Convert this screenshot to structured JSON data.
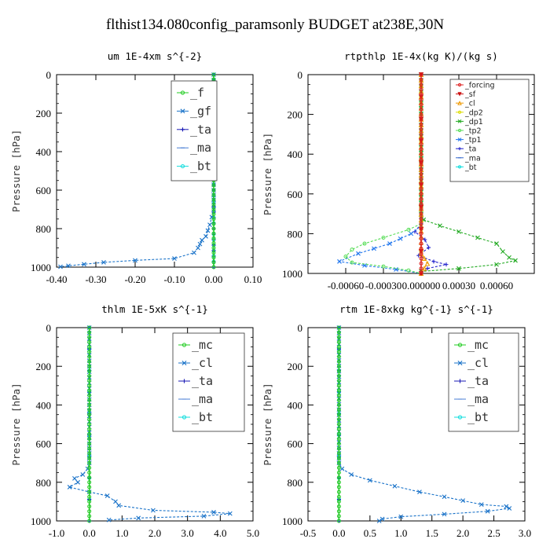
{
  "figure": {
    "title": "flthist134.080config_paramsonly  BUDGET at238E,30N"
  },
  "chart_data": [
    {
      "type": "line",
      "title": "um  1E-4xm s^{-2}",
      "ylabel": "Pressure [hPa]",
      "xlim": [
        -0.4,
        0.1
      ],
      "ylim": [
        1000,
        0
      ],
      "xticks": [
        -0.4,
        -0.3,
        -0.2,
        -0.1,
        0.0,
        0.1
      ],
      "xtick_labels": [
        "-0.40",
        "-0.30",
        "-0.20",
        "-0.10",
        "0.00",
        "0.10"
      ],
      "yticks": [
        0,
        200,
        400,
        600,
        800,
        1000
      ],
      "ytick_labels": [
        "0",
        "200",
        "400",
        "600",
        "800",
        "1000"
      ],
      "legend_position": "top-right",
      "legend_style": "large",
      "series": [
        {
          "name": "_f",
          "color": "#22cc22",
          "marker": "o",
          "points": [
            [
              0,
              0
            ],
            [
              0,
              100
            ],
            [
              0,
              200
            ],
            [
              0,
              300
            ],
            [
              0,
              400
            ],
            [
              0,
              500
            ],
            [
              0,
              600
            ],
            [
              0,
              700
            ],
            [
              0,
              800
            ],
            [
              0,
              900
            ],
            [
              0,
              1000
            ]
          ]
        },
        {
          "name": "_gf",
          "color": "#1a73c9",
          "marker": "x",
          "points": [
            [
              0.0,
              0
            ],
            [
              0.0,
              200
            ],
            [
              0.0,
              400
            ],
            [
              0.0,
              600
            ],
            [
              0.0,
              700
            ],
            [
              -0.005,
              740
            ],
            [
              -0.01,
              780
            ],
            [
              -0.015,
              810
            ],
            [
              -0.02,
              840
            ],
            [
              -0.03,
              860
            ],
            [
              -0.035,
              880
            ],
            [
              -0.04,
              900
            ],
            [
              -0.05,
              925
            ],
            [
              -0.1,
              955
            ],
            [
              -0.2,
              965
            ],
            [
              -0.28,
              975
            ],
            [
              -0.33,
              985
            ],
            [
              -0.37,
              993
            ],
            [
              -0.39,
              998
            ]
          ]
        },
        {
          "name": "_ta",
          "color": "#1a1ab5",
          "marker": "+",
          "points": [
            [
              0,
              0
            ],
            [
              0,
              200
            ],
            [
              0,
              400
            ],
            [
              0,
              600
            ],
            [
              0,
              800
            ],
            [
              0,
              1000
            ]
          ]
        },
        {
          "name": "_ma",
          "color": "#4a7fd4",
          "marker": "-",
          "points": [
            [
              0,
              0
            ],
            [
              0,
              200
            ],
            [
              0,
              400
            ],
            [
              0,
              600
            ],
            [
              0,
              800
            ],
            [
              0,
              1000
            ]
          ]
        },
        {
          "name": "_bt",
          "color": "#11dddd",
          "marker": "o",
          "points": [
            [
              0,
              0
            ],
            [
              0,
              200
            ],
            [
              0,
              400
            ],
            [
              0,
              600
            ],
            [
              0,
              800
            ],
            [
              0,
              1000
            ]
          ]
        }
      ]
    },
    {
      "type": "line",
      "title": "rtpthlp  1E-4x(kg K)/(kg s)",
      "ylabel": "Pressure [hPa]",
      "xlim": [
        -0.0009,
        0.0009
      ],
      "ylim": [
        1000,
        0
      ],
      "xticks": [
        -0.0006,
        -0.0003,
        0.0,
        0.0003,
        0.0006
      ],
      "xtick_labels": [
        "-0.00060",
        "-0.00030",
        "0.000000",
        "0.00030",
        "0.00060"
      ],
      "yticks": [
        0,
        200,
        400,
        600,
        800,
        1000
      ],
      "ytick_labels": [
        "0",
        "200",
        "400",
        "600",
        "800",
        "1000"
      ],
      "legend_position": "top-right",
      "legend_style": "small",
      "series": [
        {
          "name": "_forcing",
          "color": "#dd2222",
          "marker": "o",
          "points": [
            [
              0,
              0
            ],
            [
              0,
              100
            ],
            [
              0,
              200
            ],
            [
              0,
              300
            ],
            [
              0,
              400
            ],
            [
              0,
              500
            ],
            [
              0,
              600
            ],
            [
              0,
              700
            ],
            [
              0,
              800
            ],
            [
              0,
              900
            ],
            [
              0,
              1000
            ]
          ]
        },
        {
          "name": "_sf",
          "color": "#cc1111",
          "marker": "v",
          "points": [
            [
              0,
              0
            ],
            [
              0,
              1000
            ]
          ]
        },
        {
          "name": "_cl",
          "color": "#ee9900",
          "marker": "^",
          "points": [
            [
              0,
              0
            ],
            [
              0,
              900
            ],
            [
              5e-05,
              950
            ],
            [
              0,
              1000
            ]
          ]
        },
        {
          "name": "_dp2",
          "color": "#dddd00",
          "marker": "o",
          "points": [
            [
              0,
              0
            ],
            [
              0,
              1000
            ]
          ]
        },
        {
          "name": "_dp1",
          "color": "#22aa22",
          "marker": "x",
          "points": [
            [
              0,
              0
            ],
            [
              0,
              700
            ],
            [
              2e-05,
              730
            ],
            [
              0.00015,
              760
            ],
            [
              0.0003,
              790
            ],
            [
              0.00045,
              820
            ],
            [
              0.0006,
              850
            ],
            [
              0.00065,
              890
            ],
            [
              0.0007,
              920
            ],
            [
              0.00075,
              935
            ],
            [
              0.0006,
              955
            ],
            [
              0.0003,
              975
            ],
            [
              0.0,
              990
            ]
          ]
        },
        {
          "name": "_tp2",
          "color": "#55dd55",
          "marker": "o",
          "points": [
            [
              0,
              0
            ],
            [
              0,
              750
            ],
            [
              -0.0001,
              780
            ],
            [
              -0.0003,
              820
            ],
            [
              -0.00045,
              850
            ],
            [
              -0.00055,
              880
            ],
            [
              -0.0006,
              915
            ],
            [
              -0.00055,
              945
            ],
            [
              -0.0003,
              965
            ],
            [
              -0.0001,
              985
            ],
            [
              0,
              1000
            ]
          ]
        },
        {
          "name": "_tp1",
          "color": "#2277ee",
          "marker": "x",
          "points": [
            [
              0,
              0
            ],
            [
              0,
              760
            ],
            [
              -8e-05,
              800
            ],
            [
              -0.00025,
              850
            ],
            [
              -0.0005,
              900
            ],
            [
              -0.00065,
              940
            ],
            [
              -0.00045,
              960
            ],
            [
              -0.0002,
              980
            ],
            [
              0,
              1000
            ]
          ]
        },
        {
          "name": "_ta",
          "color": "#2222cc",
          "marker": "+",
          "points": [
            [
              0,
              0
            ],
            [
              0,
              750
            ],
            [
              -5e-05,
              790
            ],
            [
              3e-05,
              830
            ],
            [
              6e-05,
              870
            ],
            [
              -2e-05,
              910
            ],
            [
              0.0001,
              940
            ],
            [
              0.0002,
              955
            ],
            [
              5e-05,
              975
            ],
            [
              0,
              1000
            ]
          ]
        },
        {
          "name": "_ma",
          "color": "#3366cc",
          "marker": "-",
          "points": [
            [
              0,
              0
            ],
            [
              0,
              1000
            ]
          ]
        },
        {
          "name": "_bt",
          "color": "#11dddd",
          "marker": "o",
          "points": [
            [
              0,
              0
            ],
            [
              0,
              1000
            ]
          ]
        }
      ]
    },
    {
      "type": "line",
      "title": "thlm  1E-5xK s^{-1}",
      "ylabel": "Pressure [hPa]",
      "xlim": [
        -1.0,
        5.0
      ],
      "ylim": [
        1000,
        0
      ],
      "xticks": [
        -1,
        0,
        1,
        2,
        3,
        4,
        5
      ],
      "xtick_labels": [
        "-1.0",
        "0.0",
        "1.0",
        "2.0",
        "3.0",
        "4.0",
        "5.0"
      ],
      "yticks": [
        0,
        200,
        400,
        600,
        800,
        1000
      ],
      "ytick_labels": [
        "0",
        "200",
        "400",
        "600",
        "800",
        "1000"
      ],
      "legend_position": "top-right",
      "legend_style": "large",
      "series": [
        {
          "name": "_mc",
          "color": "#22cc22",
          "marker": "o",
          "points": [
            [
              0,
              0
            ],
            [
              0,
              100
            ],
            [
              0,
              200
            ],
            [
              0,
              300
            ],
            [
              0,
              400
            ],
            [
              0,
              500
            ],
            [
              0,
              600
            ],
            [
              0,
              700
            ],
            [
              0,
              800
            ],
            [
              0,
              900
            ],
            [
              0,
              1000
            ]
          ]
        },
        {
          "name": "_cl",
          "color": "#1a73c9",
          "marker": "x",
          "points": [
            [
              0,
              0
            ],
            [
              0,
              600
            ],
            [
              0,
              700
            ],
            [
              -0.05,
              730
            ],
            [
              -0.2,
              760
            ],
            [
              -0.45,
              780
            ],
            [
              -0.35,
              800
            ],
            [
              -0.6,
              825
            ],
            [
              0.0,
              850
            ],
            [
              0.55,
              870
            ],
            [
              0.8,
              900
            ],
            [
              0.9,
              920
            ],
            [
              1.95,
              945
            ],
            [
              3.8,
              955
            ],
            [
              4.3,
              962
            ],
            [
              3.5,
              975
            ],
            [
              1.5,
              985
            ],
            [
              0.6,
              995
            ]
          ]
        },
        {
          "name": "_ta",
          "color": "#1a1ab5",
          "marker": "+",
          "points": [
            [
              0,
              0
            ],
            [
              0,
              1000
            ]
          ]
        },
        {
          "name": "_ma",
          "color": "#4a7fd4",
          "marker": "-",
          "points": [
            [
              0,
              0
            ],
            [
              0,
              1000
            ]
          ]
        },
        {
          "name": "_bt",
          "color": "#11dddd",
          "marker": "o",
          "points": [
            [
              0,
              0
            ],
            [
              0,
              1000
            ]
          ]
        }
      ]
    },
    {
      "type": "line",
      "title": "rtm  1E-8xkg kg^{-1} s^{-1}",
      "ylabel": "Pressure [hPa]",
      "xlim": [
        -0.5,
        3.0
      ],
      "ylim": [
        1000,
        0
      ],
      "xticks": [
        -0.5,
        0.0,
        0.5,
        1.0,
        1.5,
        2.0,
        2.5,
        3.0
      ],
      "xtick_labels": [
        "-0.5",
        "0.0",
        "0.5",
        "1.0",
        "1.5",
        "2.0",
        "2.5",
        "3.0"
      ],
      "yticks": [
        0,
        200,
        400,
        600,
        800,
        1000
      ],
      "ytick_labels": [
        "0",
        "200",
        "400",
        "600",
        "800",
        "1000"
      ],
      "legend_position": "top-right",
      "legend_style": "large",
      "series": [
        {
          "name": "_mc",
          "color": "#22cc22",
          "marker": "o",
          "points": [
            [
              0,
              0
            ],
            [
              0,
              100
            ],
            [
              0,
              200
            ],
            [
              0,
              300
            ],
            [
              0,
              400
            ],
            [
              0,
              500
            ],
            [
              0,
              600
            ],
            [
              0,
              700
            ],
            [
              0,
              800
            ],
            [
              0,
              900
            ],
            [
              0,
              1000
            ]
          ]
        },
        {
          "name": "_cl",
          "color": "#1a73c9",
          "marker": "x",
          "points": [
            [
              0,
              0
            ],
            [
              0,
              650
            ],
            [
              0,
              700
            ],
            [
              0.05,
              730
            ],
            [
              0.2,
              760
            ],
            [
              0.5,
              790
            ],
            [
              0.9,
              820
            ],
            [
              1.3,
              850
            ],
            [
              1.7,
              875
            ],
            [
              2.0,
              895
            ],
            [
              2.3,
              915
            ],
            [
              2.7,
              925
            ],
            [
              2.75,
              935
            ],
            [
              2.4,
              950
            ],
            [
              1.7,
              965
            ],
            [
              1.0,
              978
            ],
            [
              0.7,
              990
            ],
            [
              0.65,
              1000
            ]
          ]
        },
        {
          "name": "_ta",
          "color": "#1a1ab5",
          "marker": "+",
          "points": [
            [
              0,
              0
            ],
            [
              0,
              1000
            ]
          ]
        },
        {
          "name": "_ma",
          "color": "#4a7fd4",
          "marker": "-",
          "points": [
            [
              0,
              0
            ],
            [
              0,
              1000
            ]
          ]
        },
        {
          "name": "_bt",
          "color": "#11dddd",
          "marker": "o",
          "points": [
            [
              0,
              0
            ],
            [
              0,
              1000
            ]
          ]
        }
      ]
    }
  ]
}
